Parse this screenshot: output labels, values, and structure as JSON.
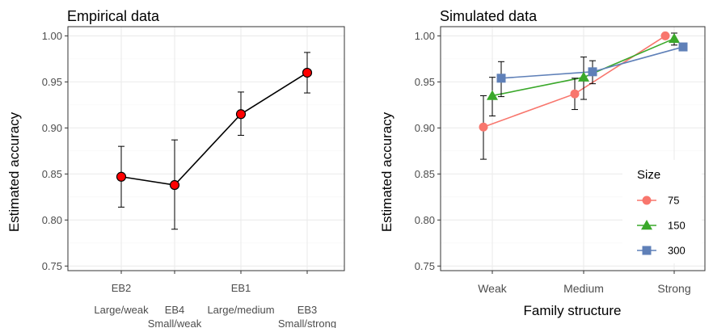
{
  "chart_data": [
    {
      "type": "line",
      "title": "Empirical data",
      "ylabel": "Estimated accuracy",
      "xlabel": "",
      "ylim": [
        0.745,
        1.01
      ],
      "yticks": [
        "0.75",
        "0.80",
        "0.85",
        "0.90",
        "0.95",
        "1.00"
      ],
      "categories": [
        {
          "code": "EB2",
          "desc": "Large/weak"
        },
        {
          "code": "EB4",
          "desc": "Small/weak"
        },
        {
          "code": "EB1",
          "desc": "Large/medium"
        },
        {
          "code": "EB3",
          "desc": "Small/strong"
        }
      ],
      "values": [
        0.847,
        0.838,
        0.915,
        0.96
      ],
      "errors": [
        {
          "lo": 0.814,
          "hi": 0.88
        },
        {
          "lo": 0.79,
          "hi": 0.887
        },
        {
          "lo": 0.892,
          "hi": 0.939
        },
        {
          "lo": 0.938,
          "hi": 0.982
        }
      ],
      "marker_color": "#ff0000",
      "line_color": "#000000",
      "grid": true
    },
    {
      "type": "line",
      "title": "Simulated data",
      "ylabel": "Estimated accuracy",
      "xlabel": "Family structure",
      "ylim": [
        0.745,
        1.01
      ],
      "yticks": [
        "0.75",
        "0.80",
        "0.85",
        "0.90",
        "0.95",
        "1.00"
      ],
      "categories": [
        "Weak",
        "Medium",
        "Strong"
      ],
      "legend_title": "Size",
      "legend_position": "right-inside",
      "series": [
        {
          "name": "75",
          "shape": "circle",
          "color": "#f8766d",
          "values": [
            0.901,
            0.937,
            1.0
          ],
          "errors": [
            {
              "lo": 0.866,
              "hi": 0.935
            },
            {
              "lo": 0.92,
              "hi": 0.954
            },
            null
          ]
        },
        {
          "name": "150",
          "shape": "triangle",
          "color": "#3aa82a",
          "values": [
            0.935,
            0.955,
            0.997
          ],
          "errors": [
            {
              "lo": 0.913,
              "hi": 0.955
            },
            {
              "lo": 0.931,
              "hi": 0.977
            },
            {
              "lo": 0.99,
              "hi": 1.003
            }
          ]
        },
        {
          "name": "300",
          "shape": "square",
          "color": "#5f80b8",
          "values": [
            0.954,
            0.961,
            0.988
          ],
          "errors": [
            {
              "lo": 0.934,
              "hi": 0.972
            },
            {
              "lo": 0.948,
              "hi": 0.973
            },
            null
          ]
        }
      ],
      "grid": true
    }
  ]
}
